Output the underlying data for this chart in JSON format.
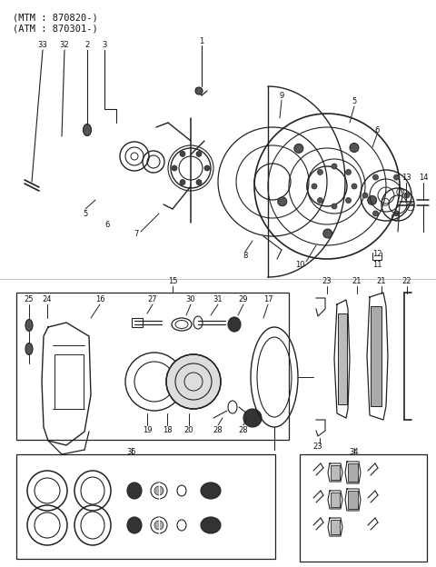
{
  "title_lines": [
    "(MTM : 870820-)",
    "(ATM : 870301-)"
  ],
  "bg_color": "#ffffff",
  "line_color": "#222222",
  "text_color": "#111111",
  "fig_width": 4.8,
  "fig_height": 6.24,
  "dpi": 100
}
